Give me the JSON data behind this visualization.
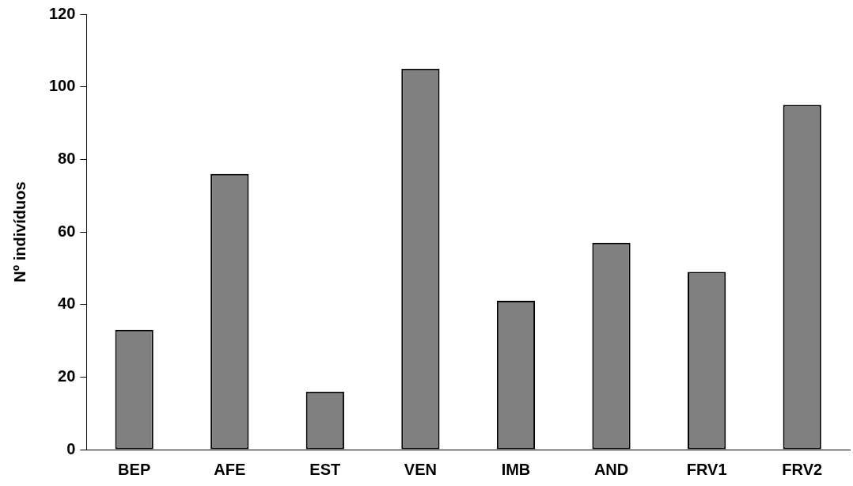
{
  "chart_data": {
    "type": "bar",
    "ylabel": "Nº indivíduos",
    "categories": [
      "BEP",
      "AFE",
      "EST",
      "VEN",
      "IMB",
      "AND",
      "FRV1",
      "FRV2"
    ],
    "values": [
      33,
      76,
      16,
      105,
      41,
      57,
      49,
      95
    ],
    "color": "#808080",
    "ylim": [
      0,
      120
    ],
    "yticks": [
      0,
      20,
      40,
      60,
      80,
      100,
      120
    ],
    "grid": false,
    "legend": false
  }
}
